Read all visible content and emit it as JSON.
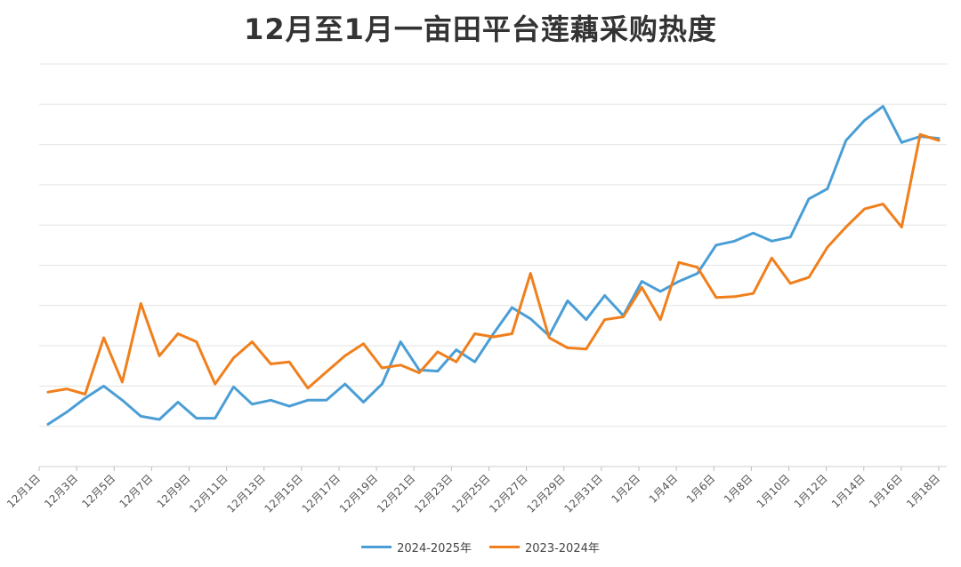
{
  "chart_data": {
    "type": "line",
    "title": "12月至1月一亩田平台莲藕采购热度",
    "xlabel": "",
    "ylabel": "",
    "ylim": [
      0,
      10
    ],
    "grid": true,
    "legend_position": "bottom",
    "x_tick_labels": [
      "12月1日",
      "12月3日",
      "12月5日",
      "12月7日",
      "12月9日",
      "12月11日",
      "12月13日",
      "12月15日",
      "12月17日",
      "12月19日",
      "12月21日",
      "12月23日",
      "12月25日",
      "12月27日",
      "12月29日",
      "12月31日",
      "1月2日",
      "1月4日",
      "1月6日",
      "1月8日",
      "1月10日",
      "1月12日",
      "1月14日",
      "1月16日",
      "1月18日"
    ],
    "series": [
      {
        "name": "2024-2025年",
        "color": "#4a9ed6",
        "values": [
          1.05,
          1.35,
          1.7,
          2.0,
          1.65,
          1.25,
          1.17,
          1.6,
          1.2,
          1.2,
          1.98,
          1.55,
          1.65,
          1.5,
          1.65,
          1.65,
          2.05,
          1.6,
          2.05,
          3.1,
          2.4,
          2.37,
          2.9,
          2.6,
          3.3,
          3.95,
          3.67,
          3.25,
          4.12,
          3.65,
          4.25,
          3.75,
          4.6,
          4.35,
          4.6,
          4.8,
          5.5,
          5.6,
          5.8,
          5.6,
          5.7,
          6.65,
          6.9,
          8.1,
          8.6,
          8.95,
          8.05,
          8.2,
          8.15
        ]
      },
      {
        "name": "2023-2024年",
        "color": "#f07f1c",
        "values": [
          1.85,
          1.93,
          1.8,
          3.2,
          2.1,
          4.05,
          2.75,
          3.3,
          3.1,
          2.05,
          2.7,
          3.1,
          2.55,
          2.6,
          1.95,
          2.35,
          2.75,
          3.05,
          2.45,
          2.52,
          2.33,
          2.85,
          2.6,
          3.3,
          3.22,
          3.3,
          4.8,
          3.2,
          2.95,
          2.92,
          3.65,
          3.72,
          4.45,
          3.65,
          5.07,
          4.95,
          4.2,
          4.22,
          4.3,
          5.18,
          4.55,
          4.7,
          5.45,
          5.95,
          6.4,
          6.52,
          5.95,
          8.25,
          8.1
        ]
      }
    ]
  }
}
